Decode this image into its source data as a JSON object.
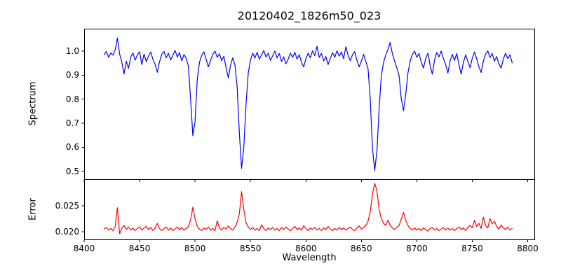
{
  "figure": {
    "background": "#ffffff",
    "frame_color": "#000000",
    "text_color": "#000000"
  },
  "chart_data": [
    {
      "type": "line",
      "title": "20120402_1826m50_023",
      "ylabel": "Spectrum",
      "xlabel": "",
      "grid": false,
      "legend": null,
      "xlim": [
        8400,
        8806
      ],
      "ylim": [
        0.467,
        1.093
      ],
      "xticks": [
        8400,
        8450,
        8500,
        8550,
        8600,
        8650,
        8700,
        8750,
        8800
      ],
      "xtick_labels": [],
      "yticks": [
        0.5,
        0.6,
        0.7,
        0.8,
        0.9,
        1.0
      ],
      "ytick_labels": [
        "0.5",
        "0.6",
        "0.7",
        "0.8",
        "0.9",
        "1.0"
      ],
      "x": [
        8418,
        8420,
        8422,
        8424,
        8426,
        8428,
        8430,
        8432,
        8434,
        8436,
        8438,
        8440,
        8442,
        8444,
        8446,
        8448,
        8450,
        8452,
        8454,
        8456,
        8458,
        8460,
        8462,
        8464,
        8466,
        8468,
        8470,
        8472,
        8474,
        8476,
        8478,
        8480,
        8482,
        8484,
        8486,
        8488,
        8490,
        8492,
        8494,
        8496,
        8498,
        8500,
        8502,
        8504,
        8506,
        8508,
        8510,
        8512,
        8514,
        8516,
        8518,
        8520,
        8522,
        8524,
        8526,
        8528,
        8530,
        8532,
        8534,
        8536,
        8538,
        8540,
        8542,
        8544,
        8546,
        8548,
        8550,
        8552,
        8554,
        8556,
        8558,
        8560,
        8562,
        8564,
        8566,
        8568,
        8570,
        8572,
        8574,
        8576,
        8578,
        8580,
        8582,
        8584,
        8586,
        8588,
        8590,
        8592,
        8594,
        8596,
        8598,
        8600,
        8602,
        8604,
        8606,
        8608,
        8610,
        8612,
        8614,
        8616,
        8618,
        8620,
        8622,
        8624,
        8626,
        8628,
        8630,
        8632,
        8634,
        8636,
        8638,
        8640,
        8642,
        8644,
        8646,
        8648,
        8650,
        8652,
        8654,
        8656,
        8658,
        8660,
        8662,
        8664,
        8666,
        8668,
        8670,
        8672,
        8674,
        8676,
        8678,
        8680,
        8682,
        8684,
        8686,
        8688,
        8690,
        8692,
        8694,
        8696,
        8698,
        8700,
        8702,
        8704,
        8706,
        8708,
        8710,
        8712,
        8714,
        8716,
        8718,
        8720,
        8722,
        8724,
        8726,
        8728,
        8730,
        8732,
        8734,
        8736,
        8738,
        8740,
        8742,
        8744,
        8746,
        8748,
        8750,
        8752,
        8754,
        8756,
        8758,
        8760,
        8762,
        8764,
        8766,
        8768,
        8770,
        8772,
        8774,
        8776,
        8778,
        8780,
        8782,
        8784,
        8786
      ],
      "series": [
        {
          "name": "spectrum",
          "color": "#0000ff",
          "y": [
            0.985,
            0.998,
            0.974,
            0.992,
            0.983,
            1.005,
            1.055,
            0.988,
            0.952,
            0.905,
            0.958,
            0.928,
            0.975,
            0.992,
            0.962,
            0.984,
            0.997,
            0.944,
            0.988,
            0.956,
            0.978,
            0.996,
            0.966,
            0.944,
            0.912,
            0.955,
            0.986,
            0.998,
            0.972,
            0.991,
            0.963,
            0.982,
            1.003,
            0.975,
            0.993,
            0.959,
            0.985,
            0.97,
            0.938,
            0.8,
            0.648,
            0.705,
            0.882,
            0.953,
            0.982,
            0.997,
            0.967,
            0.934,
            0.961,
            0.986,
            1.0,
            0.974,
            0.989,
            0.96,
            0.978,
            0.931,
            0.888,
            0.94,
            0.972,
            0.941,
            0.85,
            0.655,
            0.512,
            0.6,
            0.78,
            0.908,
            0.963,
            0.991,
            0.971,
            0.995,
            0.966,
            0.984,
            1.002,
            0.975,
            0.991,
            0.961,
            0.98,
            1.0,
            0.971,
            0.99,
            0.957,
            0.976,
            0.947,
            0.967,
            0.991,
            0.974,
            0.995,
            0.967,
            0.985,
            0.953,
            0.934,
            0.969,
            0.991,
            0.972,
            1.001,
            0.981,
            1.02,
            0.974,
            0.99,
            0.959,
            0.977,
            0.944,
            0.969,
            0.993,
            0.974,
            1.001,
            0.979,
            0.996,
            0.968,
            1.018,
            0.984,
            0.96,
            0.985,
            0.998,
            0.962,
            0.934,
            0.958,
            0.986,
            0.958,
            0.928,
            0.8,
            0.598,
            0.503,
            0.582,
            0.76,
            0.898,
            0.952,
            0.984,
            1.008,
            1.036,
            0.988,
            0.958,
            0.93,
            0.898,
            0.802,
            0.752,
            0.82,
            0.908,
            0.958,
            0.986,
            1.0,
            0.974,
            0.99,
            0.954,
            0.929,
            0.968,
            0.991,
            0.94,
            0.904,
            0.963,
            0.994,
            0.976,
            1.0,
            0.969,
            0.944,
            0.909,
            0.958,
            0.986,
            0.961,
            0.99,
            0.944,
            0.904,
            0.953,
            0.984,
            0.958,
            0.931,
            0.969,
            0.996,
            0.968,
            0.934,
            0.911,
            0.958,
            0.987,
            1.001,
            0.973,
            0.99,
            0.958,
            0.977,
            0.948,
            0.929,
            0.966,
            0.991,
            0.969,
            0.984,
            0.951
          ]
        }
      ]
    },
    {
      "type": "line",
      "title": "",
      "ylabel": "Error",
      "xlabel": "Wavelength",
      "grid": false,
      "legend": null,
      "xlim": [
        8400,
        8806
      ],
      "ylim": [
        0.0185,
        0.0301
      ],
      "xticks": [
        8400,
        8450,
        8500,
        8550,
        8600,
        8650,
        8700,
        8750,
        8800
      ],
      "xtick_labels": [
        "8400",
        "8450",
        "8500",
        "8550",
        "8600",
        "8650",
        "8700",
        "8750",
        "8800"
      ],
      "yticks": [
        0.02,
        0.025
      ],
      "ytick_labels": [
        "0.020",
        "0.025"
      ],
      "x": [
        8418,
        8420,
        8422,
        8424,
        8426,
        8428,
        8430,
        8432,
        8434,
        8436,
        8438,
        8440,
        8442,
        8444,
        8446,
        8448,
        8450,
        8452,
        8454,
        8456,
        8458,
        8460,
        8462,
        8464,
        8466,
        8468,
        8470,
        8472,
        8474,
        8476,
        8478,
        8480,
        8482,
        8484,
        8486,
        8488,
        8490,
        8492,
        8494,
        8496,
        8498,
        8500,
        8502,
        8504,
        8506,
        8508,
        8510,
        8512,
        8514,
        8516,
        8518,
        8520,
        8522,
        8524,
        8526,
        8528,
        8530,
        8532,
        8534,
        8536,
        8538,
        8540,
        8542,
        8544,
        8546,
        8548,
        8550,
        8552,
        8554,
        8556,
        8558,
        8560,
        8562,
        8564,
        8566,
        8568,
        8570,
        8572,
        8574,
        8576,
        8578,
        8580,
        8582,
        8584,
        8586,
        8588,
        8590,
        8592,
        8594,
        8596,
        8598,
        8600,
        8602,
        8604,
        8606,
        8608,
        8610,
        8612,
        8614,
        8616,
        8618,
        8620,
        8622,
        8624,
        8626,
        8628,
        8630,
        8632,
        8634,
        8636,
        8638,
        8640,
        8642,
        8644,
        8646,
        8648,
        8650,
        8652,
        8654,
        8656,
        8658,
        8660,
        8662,
        8664,
        8666,
        8668,
        8670,
        8672,
        8674,
        8676,
        8678,
        8680,
        8682,
        8684,
        8686,
        8688,
        8690,
        8692,
        8694,
        8696,
        8698,
        8700,
        8702,
        8704,
        8706,
        8708,
        8710,
        8712,
        8714,
        8716,
        8718,
        8720,
        8722,
        8724,
        8726,
        8728,
        8730,
        8732,
        8734,
        8736,
        8738,
        8740,
        8742,
        8744,
        8746,
        8748,
        8750,
        8752,
        8754,
        8756,
        8758,
        8760,
        8762,
        8764,
        8766,
        8768,
        8770,
        8772,
        8774,
        8776,
        8778,
        8780,
        8782,
        8784,
        8786
      ],
      "series": [
        {
          "name": "error",
          "color": "#ff0000",
          "y": [
            0.0205,
            0.0208,
            0.0203,
            0.0206,
            0.0202,
            0.021,
            0.0246,
            0.0196,
            0.0207,
            0.0212,
            0.0204,
            0.0209,
            0.0203,
            0.0207,
            0.0202,
            0.0206,
            0.0209,
            0.0203,
            0.0207,
            0.021,
            0.0204,
            0.0208,
            0.0202,
            0.0207,
            0.0216,
            0.0206,
            0.0202,
            0.0206,
            0.0209,
            0.0203,
            0.0207,
            0.0202,
            0.0205,
            0.0209,
            0.0204,
            0.0208,
            0.0203,
            0.0206,
            0.021,
            0.0222,
            0.0247,
            0.0225,
            0.021,
            0.0205,
            0.0202,
            0.0207,
            0.0204,
            0.0209,
            0.0203,
            0.0206,
            0.0202,
            0.0221,
            0.0207,
            0.0203,
            0.0208,
            0.0205,
            0.0211,
            0.0206,
            0.0203,
            0.0209,
            0.0218,
            0.0235,
            0.0277,
            0.0242,
            0.0217,
            0.0209,
            0.0204,
            0.0208,
            0.0203,
            0.0206,
            0.0202,
            0.0213,
            0.0206,
            0.0202,
            0.0207,
            0.0204,
            0.0208,
            0.0203,
            0.0206,
            0.0202,
            0.0208,
            0.0204,
            0.0209,
            0.0205,
            0.0202,
            0.0206,
            0.021,
            0.0204,
            0.0207,
            0.0203,
            0.0211,
            0.0206,
            0.0202,
            0.0207,
            0.0204,
            0.0208,
            0.0203,
            0.0206,
            0.0202,
            0.0207,
            0.0204,
            0.021,
            0.0205,
            0.0202,
            0.0206,
            0.0203,
            0.0208,
            0.0204,
            0.0207,
            0.0203,
            0.0206,
            0.0209,
            0.0204,
            0.0202,
            0.0207,
            0.0211,
            0.0205,
            0.0208,
            0.0212,
            0.022,
            0.0238,
            0.0272,
            0.0293,
            0.0279,
            0.0243,
            0.0225,
            0.0216,
            0.0212,
            0.0222,
            0.0212,
            0.0207,
            0.0204,
            0.0208,
            0.0212,
            0.0224,
            0.0237,
            0.0222,
            0.0212,
            0.0206,
            0.0203,
            0.0207,
            0.0203,
            0.0206,
            0.0202,
            0.0207,
            0.0204,
            0.0201,
            0.0206,
            0.0208,
            0.0203,
            0.0206,
            0.0202,
            0.0205,
            0.0208,
            0.0203,
            0.0207,
            0.0203,
            0.0206,
            0.0202,
            0.0206,
            0.0209,
            0.0204,
            0.0207,
            0.0202,
            0.0208,
            0.0212,
            0.0207,
            0.0222,
            0.021,
            0.0216,
            0.0206,
            0.0228,
            0.0212,
            0.0207,
            0.0225,
            0.0215,
            0.022,
            0.021,
            0.0205,
            0.0213,
            0.0207,
            0.0204,
            0.0209,
            0.0203,
            0.0206
          ]
        }
      ]
    }
  ]
}
